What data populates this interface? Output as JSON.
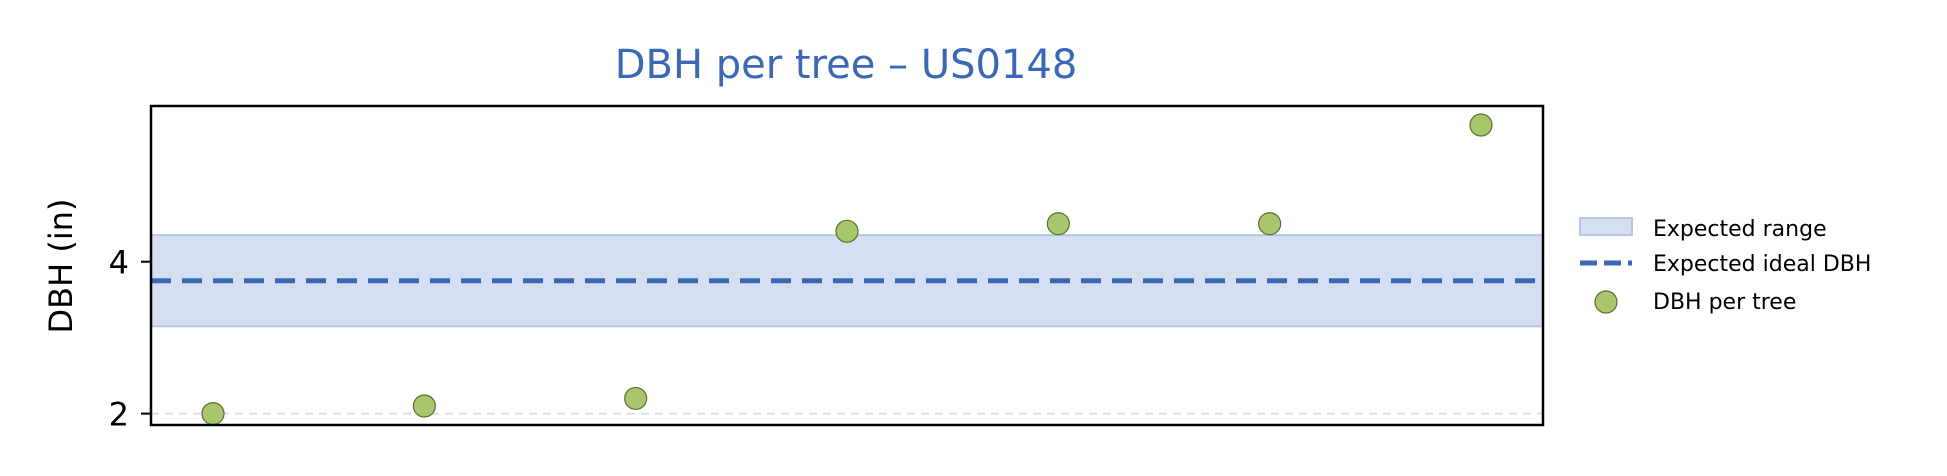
{
  "chart_data": {
    "type": "scatter",
    "title": "DBH per tree – US0148",
    "xlabel": "",
    "ylabel": "DBH (in)",
    "x_ticks_shown": false,
    "ylim": [
      1.85,
      6.05
    ],
    "yticks": [
      2,
      4
    ],
    "grid": "horizontal dashed",
    "legend_position": "right",
    "expected_range": {
      "label": "Expected range",
      "low": 3.15,
      "high": 4.35
    },
    "expected_ideal": {
      "label": "Expected ideal DBH",
      "value": 3.75
    },
    "series": [
      {
        "name": "DBH per tree",
        "points": [
          {
            "x": 1,
            "y": 2.0
          },
          {
            "x": 2,
            "y": 2.1
          },
          {
            "x": 3,
            "y": 2.2
          },
          {
            "x": 4,
            "y": 4.4
          },
          {
            "x": 5,
            "y": 4.5
          },
          {
            "x": 6,
            "y": 4.5
          },
          {
            "x": 7,
            "y": 5.8
          }
        ]
      }
    ],
    "colors": {
      "title": "#3a68b4",
      "range_fill": "#d5dff1",
      "range_edge": "#b4c7e7",
      "ideal_line": "#3a68b4",
      "point_fill": "#a8c66c",
      "point_edge": "#5c7030",
      "grid": "#dddddd",
      "axis": "#000000"
    }
  }
}
